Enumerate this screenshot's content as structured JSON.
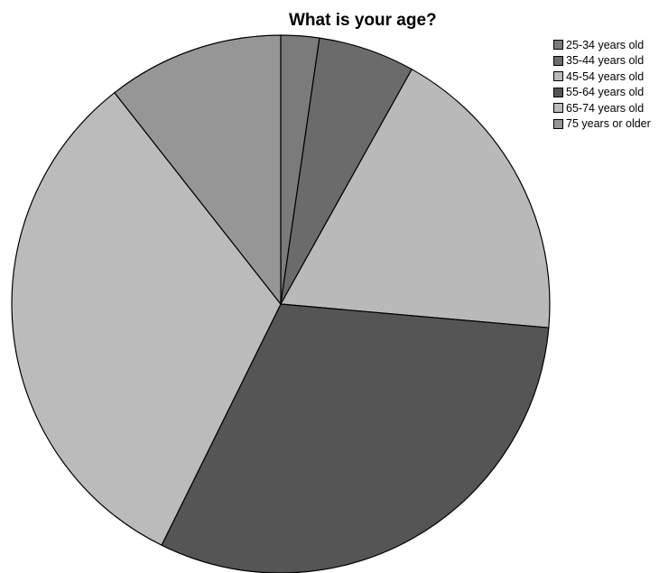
{
  "chart_data": {
    "type": "pie",
    "title": "What is your age?",
    "categories": [
      "25-34 years old",
      "35-44 years old",
      "45-54 years old",
      "55-64 years old",
      "65-74 years old",
      "75 years or older"
    ],
    "values": [
      2.3,
      5.8,
      18.3,
      30.9,
      32.1,
      10.6
    ],
    "colors": [
      "#7b7b7b",
      "#6b6b6b",
      "#b9b9b9",
      "#555555",
      "#bbbbbb",
      "#969696"
    ],
    "legend_position": "top-right",
    "slice_border_color": "#000000"
  }
}
